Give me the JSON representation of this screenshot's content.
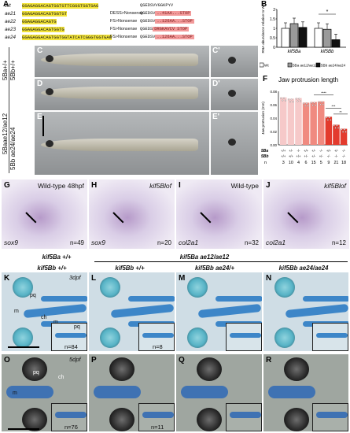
{
  "panels": {
    "A": "A",
    "B": "B",
    "C": "C",
    "Cp": "C'",
    "D": "D",
    "Dp": "D'",
    "E": "E",
    "Ep": "E'",
    "F": "F",
    "G": "G",
    "H": "H",
    "I": "I",
    "J": "J",
    "K": "K",
    "L": "L",
    "M": "M",
    "N": "N",
    "O": "O",
    "P": "P",
    "Q": "Q",
    "R": "R"
  },
  "seqA": {
    "rows": [
      {
        "name": "Wt",
        "seq": "GGAGAGGACAGTGGTGTTCGGGTGGTGAG",
        "effect": "",
        "protein": "QGEDSVVGGKPYV",
        "stop": ""
      },
      {
        "name": "ae21",
        "seq": "GGAGAGGACAGTGGTGT",
        "effect": "DESS>Nonsense",
        "protein": "QGEDSV",
        "stop": "..41AA...STOP"
      },
      {
        "name": "ae22",
        "seq": "GGAGAGGACAGTG",
        "effect": "FS>Nonsense",
        "protein": "QGEDSV",
        "stop": "..126AA...STOP"
      },
      {
        "name": "ae23",
        "seq": "GGAGAGGACAGTGGTG",
        "effect": "FS>Nonsense",
        "protein": "QGEDS",
        "stop": "DRGKAVCV STOP"
      },
      {
        "name": "ae24",
        "seq": "GGAGAGGACAGTGGTGGTATCATCGGGTGGTGAG",
        "effect": "FS>Nonsense",
        "protein": "QGEDSV",
        "stop": "..126AA...STOP"
      }
    ]
  },
  "chartB": {
    "ylabel": "RNA abundance relative to WT",
    "legend": [
      "Wt",
      "5Ba ae12/ae12",
      "5Bb ae24/ae24"
    ],
    "star": "*"
  },
  "chart_data": [
    {
      "type": "bar",
      "title": "",
      "categories": [
        "kif5Ba",
        "kif5Bb"
      ],
      "series": [
        {
          "name": "Wt",
          "values": [
            1.0,
            1.0
          ]
        },
        {
          "name": "5Ba ae12/ae12",
          "values": [
            1.25,
            0.95
          ]
        },
        {
          "name": "5Bb ae24/ae24",
          "values": [
            1.05,
            0.4
          ]
        }
      ],
      "ylim": [
        0,
        2
      ],
      "yticks": [
        0,
        0.5,
        1,
        1.5,
        2
      ]
    },
    {
      "type": "bar",
      "title": "Jaw protrusion length",
      "ylabel": "Jaw protrusion (mm)",
      "categories": [
        "+/+ +/+",
        "+/- +/+",
        "-/- +/+",
        "+/+ +/-",
        "+/- +/-",
        "-/- +/-",
        "+/+ -/-",
        "+/- -/-",
        "-/- -/-"
      ],
      "values": [
        0.071,
        0.069,
        0.07,
        0.063,
        0.064,
        0.065,
        0.042,
        0.03,
        0.024
      ],
      "n": [
        "3",
        "10",
        "4",
        "6",
        "15",
        "5",
        "9",
        "21",
        "18"
      ],
      "row5Ba": [
        "+/+",
        "+/-",
        "-/-",
        "+/+",
        "+/-",
        "-/-",
        "+/+",
        "+/-",
        "-/-"
      ],
      "row5Bb": [
        "+/+",
        "+/+",
        "+/+",
        "+/-",
        "+/-",
        "+/-",
        "-/-",
        "-/-",
        "-/-"
      ],
      "ylim": [
        0,
        0.08
      ],
      "yticks": [
        "0.08",
        "0.06",
        "0.04",
        "0.02",
        "0.00"
      ],
      "sig": [
        "****",
        "***",
        "**"
      ]
    }
  ],
  "rowlabels": {
    "5Ba_wt": "5Ba+/+",
    "5Bb_wt": "5Bb+/+",
    "5Ba_mut": "5Baae12/ae12",
    "5Bb_mut": "5Bb ae24/ae24"
  },
  "stains": [
    {
      "title": "Wild-type 48hpf",
      "gene": "sox9",
      "n": "n=49"
    },
    {
      "title": "kif5Blof",
      "gene": "sox9",
      "n": "n=20"
    },
    {
      "title": "Wild-type",
      "gene": "col2a1",
      "n": "n=32"
    },
    {
      "title": "kif5Blof",
      "gene": "col2a1",
      "n": "n=12"
    }
  ],
  "headers": {
    "ba_wt": "kif5Ba +/+",
    "ba_mut": "kif5Ba ae12/ae12",
    "bb_wt": "kif5Bb +/+",
    "bb_het": "kif5Bb ae24/+",
    "bb_mut": "kif5Bb ae24/ae24"
  },
  "stage": {
    "k": "3dpf",
    "o": "5dpf"
  },
  "cart": {
    "K": {
      "n": "n=84",
      "labels": [
        "pq",
        "m",
        "ch"
      ],
      "inset": [
        "m",
        "pq"
      ]
    },
    "L": {
      "n": "n=8"
    },
    "O": {
      "n": "n=76",
      "labels": [
        "pq",
        "m",
        "ch"
      ]
    },
    "P": {
      "n": "n=11"
    }
  }
}
